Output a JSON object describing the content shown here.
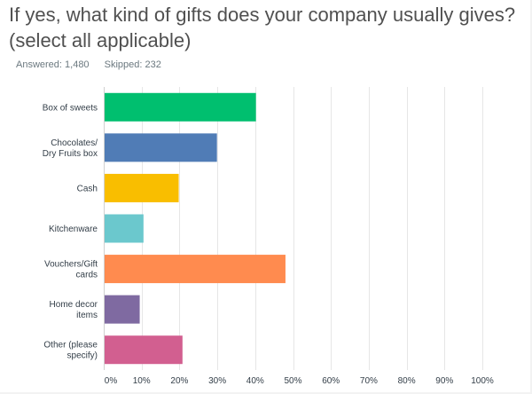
{
  "question": {
    "line1": "If yes, what kind of gifts does your company usually gives?",
    "line2": "(select all applicable)"
  },
  "stats": {
    "answered": "Answered: 1,480",
    "skipped": "Skipped: 232"
  },
  "chart_data": {
    "type": "bar",
    "orientation": "horizontal",
    "categories": [
      [
        "Box of sweets"
      ],
      [
        "Chocolates/",
        "Dry Fruits box"
      ],
      [
        "Cash"
      ],
      [
        "Kitchenware"
      ],
      [
        "Vouchers/Gift",
        "cards"
      ],
      [
        "Home decor",
        "items"
      ],
      [
        "Other (please",
        "specify)"
      ]
    ],
    "values": [
      40.2,
      29.9,
      19.8,
      10.5,
      48.0,
      9.5,
      20.8
    ],
    "colors": [
      "#00bf6f",
      "#507cb6",
      "#f9be00",
      "#6bc8cd",
      "#ff8b4f",
      "#7f6aa1",
      "#d25f90"
    ],
    "xlim": [
      0,
      100
    ],
    "xticks": [
      "0%",
      "10%",
      "20%",
      "30%",
      "40%",
      "50%",
      "60%",
      "70%",
      "80%",
      "90%",
      "100%"
    ],
    "grid": true
  }
}
